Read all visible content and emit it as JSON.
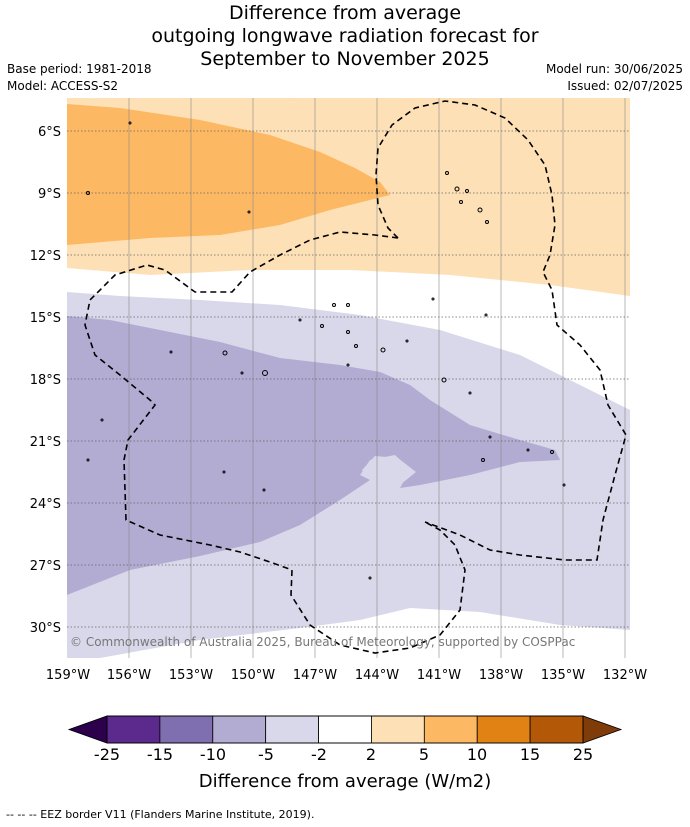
{
  "title": {
    "line1": "Difference from average",
    "line2": "outgoing longwave radiation forecast for",
    "line3": "September to November 2025"
  },
  "meta": {
    "base_period": "Base period: 1981-2018",
    "model": "Model: ACCESS-S2",
    "model_run": "Model run: 30/06/2025",
    "issued": "Issued: 02/07/2025"
  },
  "map": {
    "lat_labels": [
      "6°S",
      "9°S",
      "12°S",
      "15°S",
      "18°S",
      "21°S",
      "24°S",
      "27°S",
      "30°S"
    ],
    "lon_labels": [
      "159°W",
      "156°W",
      "153°W",
      "150°W",
      "147°W",
      "144°W",
      "141°W",
      "138°W",
      "135°W",
      "132°W"
    ],
    "copyright": "© Commonwealth of Australia 2025, Bureau of Meteorology, supported by COSPPac"
  },
  "colorbar": {
    "title": "Difference from average (W/m2)",
    "ticks": [
      "-25",
      "-15",
      "-10",
      "-5",
      "-2",
      "2",
      "5",
      "10",
      "15",
      "25"
    ],
    "colors": [
      "#5b2a8c",
      "#7f6eb0",
      "#b2abd2",
      "#d8d8ea",
      "#ffffff",
      "#fee0b6",
      "#fdb863",
      "#e08214",
      "#b35806"
    ],
    "under_color": "#2d004b",
    "over_color": "#7f3b08"
  },
  "footnote": "--  --  -- EEZ border V11 (Flanders Marine Institute, 2019)."
}
